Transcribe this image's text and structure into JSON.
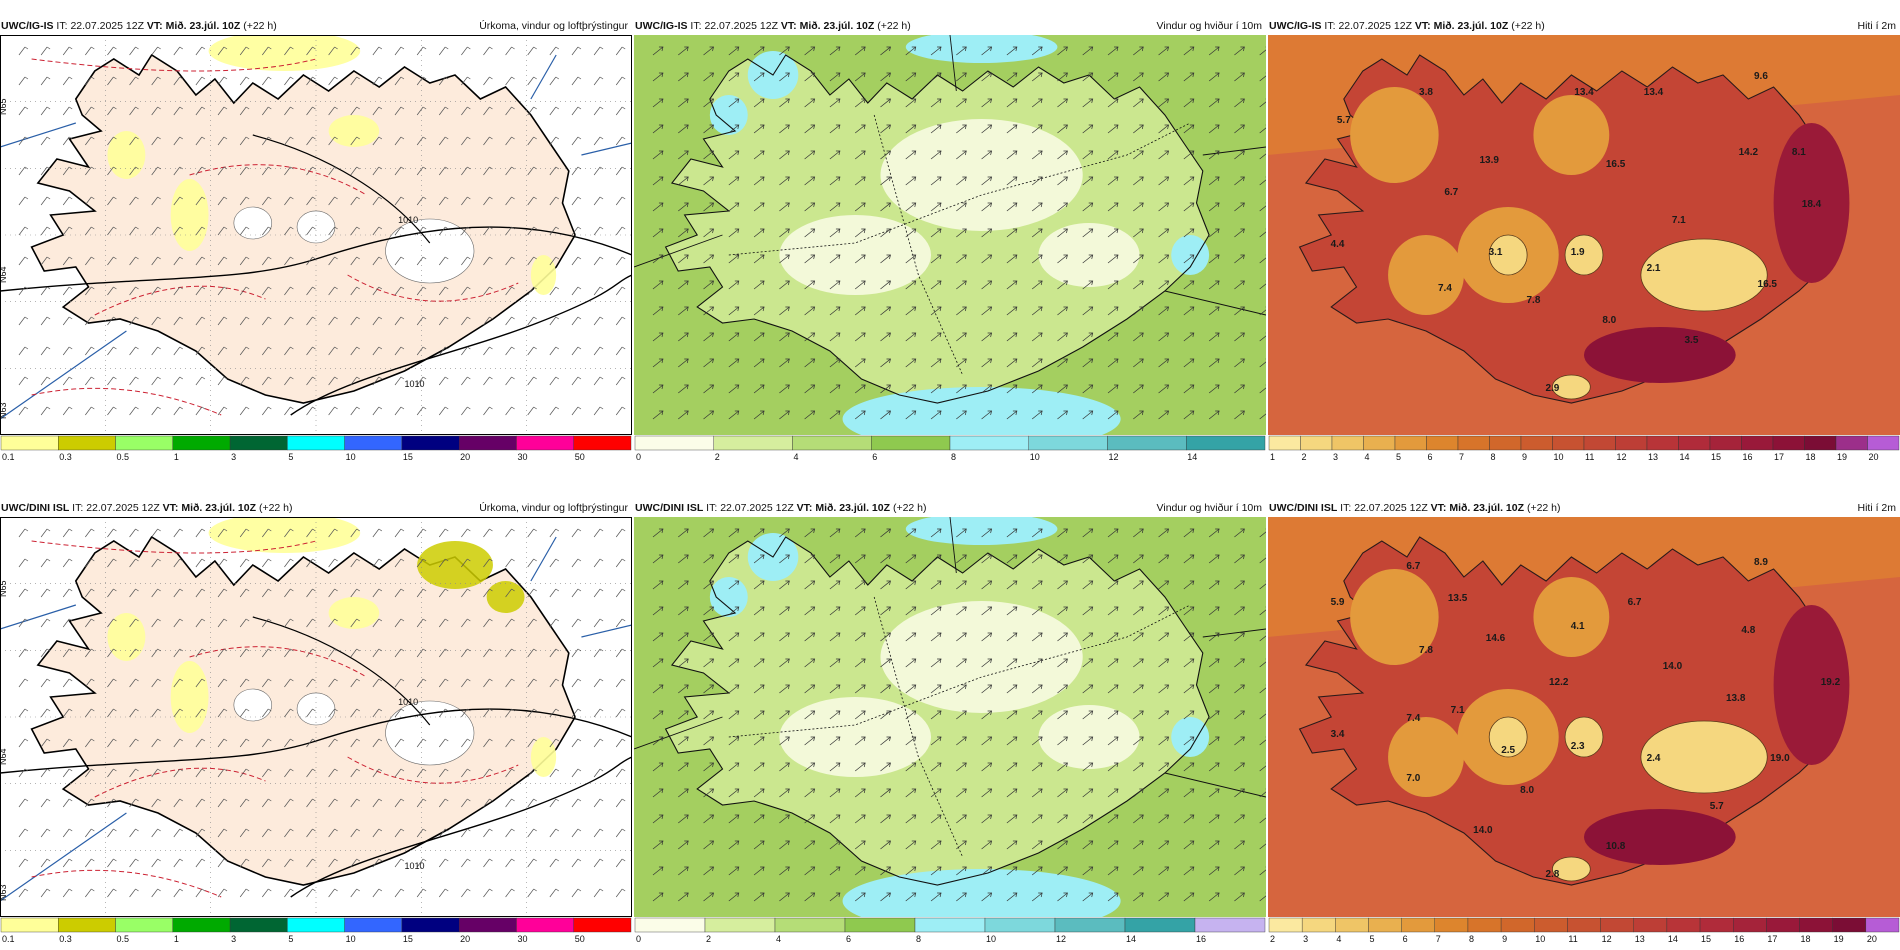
{
  "panels": [
    {
      "model": "UWC/IG-IS",
      "it_label": "IT:",
      "it_value": "22.07.2025 12Z",
      "vt_label": "VT:",
      "vt_value": "Mið. 23.júl. 10Z",
      "lead": "(+22 h)",
      "title": "Úrkoma, vindur og loftþrýstingur",
      "kind": "precip",
      "map_labels": [],
      "colorbar": {
        "labels": [
          "0.1",
          "0.3",
          "0.5",
          "1",
          "3",
          "5",
          "10",
          "15",
          "20",
          "30",
          "50"
        ],
        "colors": [
          "#ffff99",
          "#cccc00",
          "#99ff66",
          "#00aa00",
          "#006633",
          "#00ffff",
          "#3366ff",
          "#000080",
          "#660066",
          "#ff0099",
          "#ff0000"
        ]
      }
    },
    {
      "model": "UWC/IG-IS",
      "it_label": "IT:",
      "it_value": "22.07.2025 12Z",
      "vt_label": "VT:",
      "vt_value": "Mið. 23.júl. 10Z",
      "lead": "(+22 h)",
      "title": "Vindur og hviður í 10m",
      "kind": "wind",
      "map_labels": [],
      "colorbar": {
        "labels": [
          "0",
          "2",
          "4",
          "6",
          "8",
          "10",
          "12",
          "14"
        ],
        "colors": [
          "#fbfde8",
          "#d6ee9e",
          "#b5dd77",
          "#8fc94f",
          "#9eeef5",
          "#7dd8dc",
          "#5bbcbf",
          "#34a3a6"
        ]
      }
    },
    {
      "model": "UWC/IG-IS",
      "it_label": "IT:",
      "it_value": "22.07.2025 12Z",
      "vt_label": "VT:",
      "vt_value": "Mið. 23.júl. 10Z",
      "lead": "(+22 h)",
      "title": "Hiti í 2m",
      "kind": "temp",
      "map_labels": [
        "5.7",
        "3.8",
        "13.4",
        "13.4",
        "9.6",
        "13.9",
        "16.5",
        "14.2",
        "8.1",
        "6.7",
        "18.4",
        "7.1",
        "4.4",
        "3.1",
        "1.9",
        "2.1",
        "7.4",
        "7.8",
        "16.5",
        "8.0",
        "3.5",
        "2.9"
      ],
      "colorbar": {
        "labels": [
          "1",
          "2",
          "3",
          "4",
          "5",
          "6",
          "7",
          "8",
          "9",
          "10",
          "11",
          "12",
          "13",
          "14",
          "15",
          "16",
          "17",
          "18",
          "19",
          "20"
        ],
        "colors": [
          "#fbe9a0",
          "#f5d77f",
          "#efc566",
          "#e9b04f",
          "#e39a3c",
          "#dd852d",
          "#d7742a",
          "#d1672b",
          "#cc5c2e",
          "#c75231",
          "#c24834",
          "#bd3e36",
          "#b83438",
          "#b02b3a",
          "#a5233a",
          "#99193a",
          "#8c1237",
          "#7b0d35",
          "#9c2f8a",
          "#b65cd6"
        ]
      }
    },
    {
      "model": "UWC/DINI ISL",
      "it_label": "IT:",
      "it_value": "22.07.2025 12Z",
      "vt_label": "VT:",
      "vt_value": "Mið. 23.júl. 10Z",
      "lead": "(+22 h)",
      "title": "Úrkoma, vindur og loftþrýstingur",
      "kind": "precip",
      "map_labels": [],
      "colorbar": {
        "labels": [
          "0.1",
          "0.3",
          "0.5",
          "1",
          "3",
          "5",
          "10",
          "15",
          "20",
          "30",
          "50"
        ],
        "colors": [
          "#ffff99",
          "#cccc00",
          "#99ff66",
          "#00aa00",
          "#006633",
          "#00ffff",
          "#3366ff",
          "#000080",
          "#660066",
          "#ff0099",
          "#ff0000"
        ]
      }
    },
    {
      "model": "UWC/DINI ISL",
      "it_label": "IT:",
      "it_value": "22.07.2025 12Z",
      "vt_label": "VT:",
      "vt_value": "Mið. 23.júl. 10Z",
      "lead": "(+22 h)",
      "title": "Vindur og hviður í 10m",
      "kind": "wind",
      "map_labels": [],
      "colorbar": {
        "labels": [
          "0",
          "2",
          "4",
          "6",
          "8",
          "10",
          "12",
          "14",
          "16"
        ],
        "colors": [
          "#fbfde8",
          "#d6ee9e",
          "#b5dd77",
          "#8fc94f",
          "#9eeef5",
          "#7dd8dc",
          "#5bbcbf",
          "#34a3a6",
          "#c6b3f0"
        ]
      }
    },
    {
      "model": "UWC/DINI ISL",
      "it_label": "IT:",
      "it_value": "22.07.2025 12Z",
      "vt_label": "VT:",
      "vt_value": "Mið. 23.júl. 10Z",
      "lead": "(+22 h)",
      "title": "Hiti í 2m",
      "kind": "temp",
      "map_labels": [
        "6.7",
        "5.9",
        "13.5",
        "8.9",
        "14.6",
        "4.1",
        "6.7",
        "7.8",
        "4.8",
        "14.0",
        "12.2",
        "19.2",
        "13.8",
        "7.4",
        "7.1",
        "3.4",
        "2.5",
        "2.3",
        "2.4",
        "19.0",
        "7.0",
        "8.0",
        "5.7",
        "14.0",
        "10.8",
        "2.8"
      ],
      "colorbar": {
        "labels": [
          "2",
          "3",
          "4",
          "5",
          "6",
          "7",
          "8",
          "9",
          "10",
          "11",
          "12",
          "13",
          "14",
          "15",
          "16",
          "17",
          "18",
          "19",
          "20"
        ],
        "colors": [
          "#fbe9a0",
          "#f5d77f",
          "#efc566",
          "#e9b04f",
          "#e39a3c",
          "#dd852d",
          "#d7742a",
          "#d1672b",
          "#cc5c2e",
          "#c75231",
          "#c24834",
          "#bd3e36",
          "#b83438",
          "#b02b3a",
          "#a5233a",
          "#99193a",
          "#8c1237",
          "#7b0d35",
          "#b65cd6"
        ]
      }
    }
  ],
  "precip_map_labels": {
    "isobar": "1010",
    "lat_labels": [
      "N65",
      "N64",
      "N63"
    ]
  }
}
